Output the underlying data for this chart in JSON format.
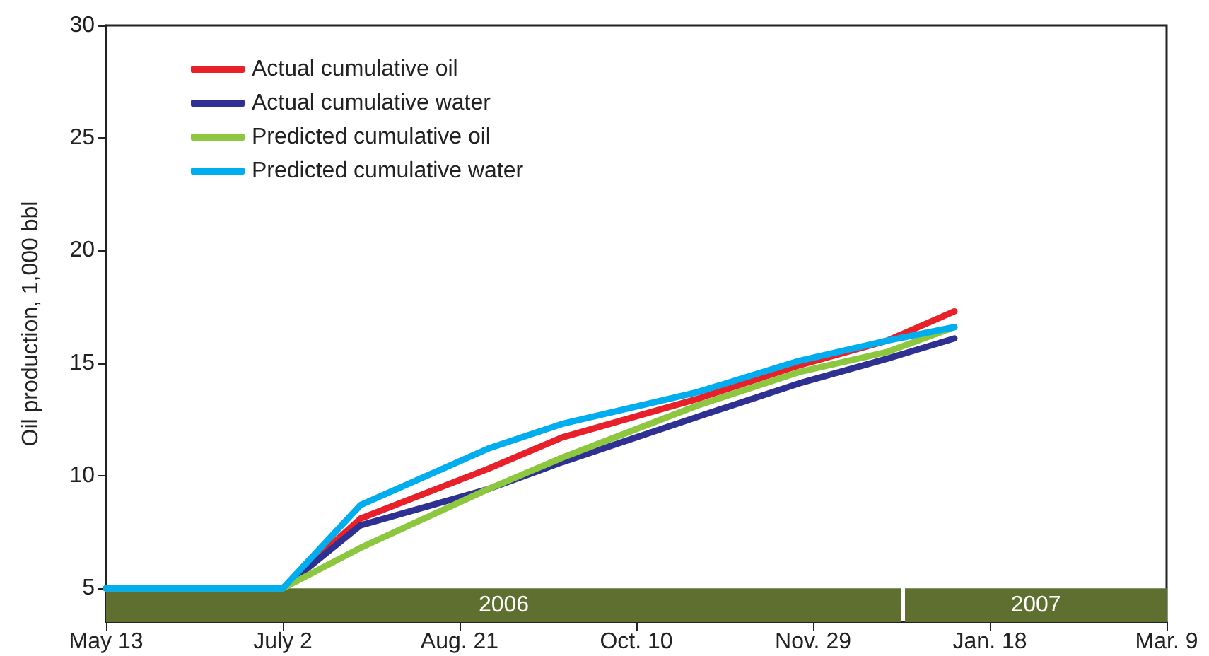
{
  "chart_data": {
    "type": "line",
    "ylabel": "Oil production, 1,000 bbl",
    "x": [
      "2006-05-13",
      "2006-07-02",
      "2006-07-24",
      "2006-08-29",
      "2006-09-19",
      "2006-10-27",
      "2006-11-25",
      "2006-12-20",
      "2007-01-08"
    ],
    "series": [
      {
        "name": "Actual cumulative oil",
        "color": "#e8202a",
        "values": [
          5,
          5,
          8.1,
          10.3,
          11.7,
          13.4,
          14.9,
          16.0,
          17.3
        ]
      },
      {
        "name": "Actual cumulative water",
        "color": "#2e3192",
        "values": [
          5,
          5,
          7.8,
          9.4,
          10.6,
          12.6,
          14.1,
          15.2,
          16.1
        ]
      },
      {
        "name": "Predicted cumulative oil",
        "color": "#8dc63f",
        "values": [
          5,
          5,
          6.8,
          9.4,
          10.8,
          13.1,
          14.6,
          15.5,
          16.6
        ]
      },
      {
        "name": "Predicted cumulative water",
        "color": "#00aeef",
        "values": [
          5,
          5,
          8.7,
          11.2,
          12.3,
          13.7,
          15.1,
          16.0,
          16.6
        ]
      }
    ],
    "xlim": [
      "2006-05-13",
      "2007-03-09"
    ],
    "xticks": [
      {
        "value": "2006-05-13",
        "label": "May 13"
      },
      {
        "value": "2006-07-02",
        "label": "July 2"
      },
      {
        "value": "2006-08-21",
        "label": "Aug. 21"
      },
      {
        "value": "2006-10-10",
        "label": "Oct. 10"
      },
      {
        "value": "2006-11-29",
        "label": "Nov. 29"
      },
      {
        "value": "2007-01-18",
        "label": "Jan. 18"
      },
      {
        "value": "2007-03-09",
        "label": "Mar. 9"
      }
    ],
    "ylim": [
      3.5,
      30
    ],
    "yticks": [
      5,
      10,
      15,
      20,
      25,
      30
    ],
    "bands": [
      {
        "axis": "x",
        "from": "2006-05-13",
        "to": "2006-12-24",
        "label": "2006",
        "color": "#5e6f30"
      },
      {
        "axis": "x",
        "from": "2006-12-25",
        "to": "2007-03-09",
        "label": "2007",
        "color": "#5e6f30"
      }
    ],
    "grid": false,
    "legend": "top left",
    "marker": "none",
    "line_style": "solid"
  }
}
